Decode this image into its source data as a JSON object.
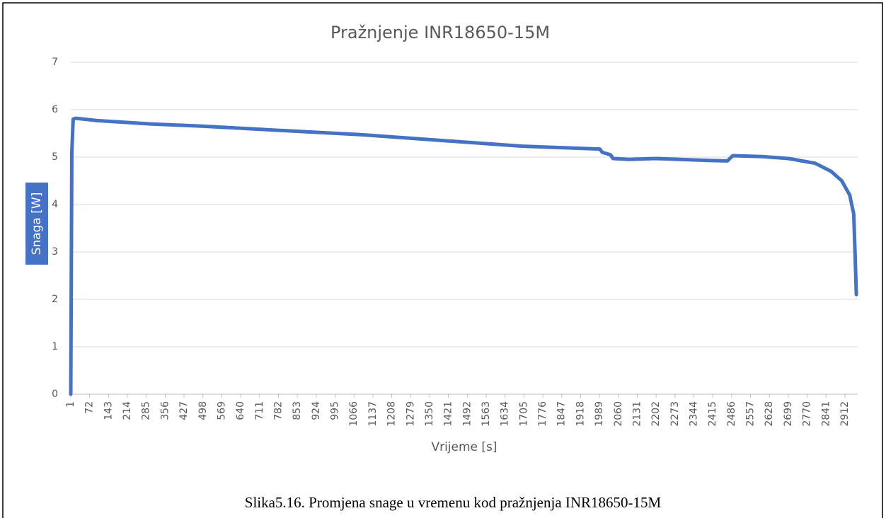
{
  "chart_data": {
    "type": "line",
    "title": "Pražnjenje INR18650-15M",
    "x_label": "Vrijeme [s]",
    "y_label": "Snaga [W]",
    "caption": "Slika5.16. Promjena snage u vremenu kod pražnjenja INR18650-15M",
    "x": [
      1,
      5,
      10,
      20,
      100,
      300,
      500,
      800,
      1100,
      1400,
      1700,
      1990,
      2000,
      2030,
      2040,
      2100,
      2200,
      2400,
      2470,
      2490,
      2600,
      2700,
      2800,
      2860,
      2900,
      2930,
      2945,
      2950,
      2955
    ],
    "series": [
      {
        "name": "Snaga [W]",
        "color": "#4472c4",
        "values": [
          0,
          5.1,
          5.8,
          5.82,
          5.77,
          5.7,
          5.65,
          5.56,
          5.47,
          5.35,
          5.23,
          5.17,
          5.1,
          5.05,
          4.97,
          4.95,
          4.97,
          4.93,
          4.92,
          5.03,
          5.01,
          4.97,
          4.87,
          4.7,
          4.5,
          4.2,
          3.8,
          3.0,
          2.1
        ]
      }
    ],
    "xlim": [
      1,
      2960
    ],
    "xticks": [
      1,
      72,
      143,
      214,
      285,
      356,
      427,
      498,
      569,
      640,
      711,
      782,
      853,
      924,
      995,
      1066,
      1137,
      1208,
      1279,
      1350,
      1421,
      1492,
      1563,
      1634,
      1705,
      1776,
      1847,
      1918,
      1989,
      2060,
      2131,
      2202,
      2273,
      2344,
      2415,
      2486,
      2557,
      2628,
      2699,
      2770,
      2841,
      2912
    ],
    "ylim": [
      0,
      7
    ],
    "yticks": [
      0,
      1,
      2,
      3,
      4,
      5,
      6,
      7
    ],
    "grid": true
  }
}
